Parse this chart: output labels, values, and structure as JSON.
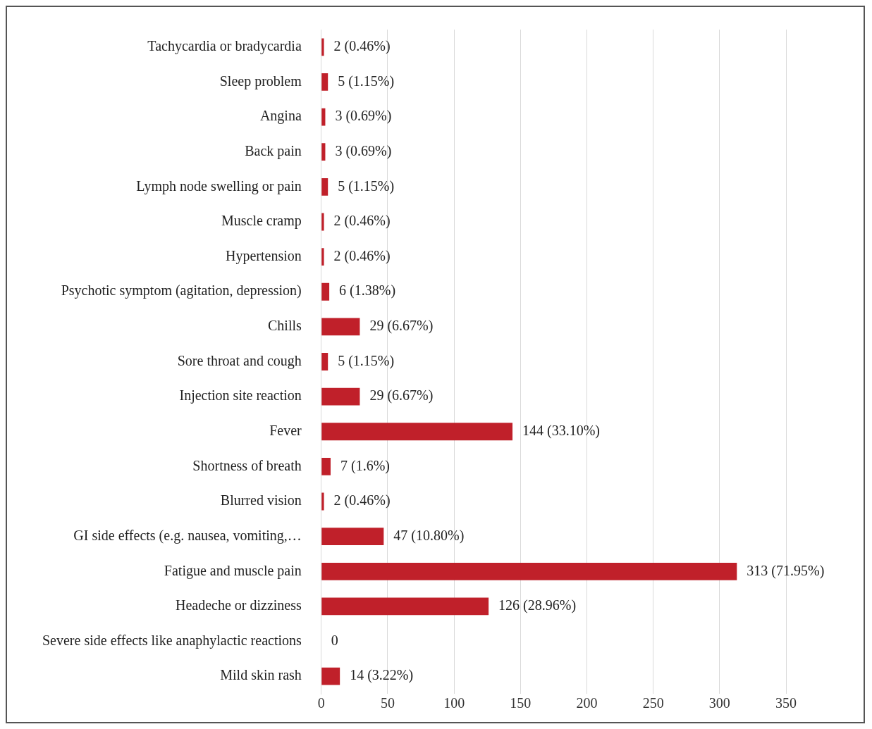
{
  "chart_data": {
    "type": "bar",
    "orientation": "horizontal",
    "categories": [
      "Tachycardia or bradycardia",
      "Sleep problem",
      "Angina",
      "Back pain",
      "Lymph node swelling or pain",
      "Muscle cramp",
      "Hypertension",
      "Psychotic symptom (agitation, depression)",
      "Chills",
      "Sore throat and cough",
      "Injection site reaction",
      "Fever",
      "Shortness of breath",
      "Blurred vision",
      "GI side effects (e.g. nausea, vomiting,…",
      "Fatigue and muscle pain",
      "Headeche or dizziness",
      "Severe side effects like anaphylactic reactions",
      "Mild skin rash"
    ],
    "values": [
      2,
      5,
      3,
      3,
      5,
      2,
      2,
      6,
      29,
      5,
      29,
      144,
      7,
      2,
      47,
      313,
      126,
      0,
      14
    ],
    "value_labels": [
      "2 (0.46%)",
      "5 (1.15%)",
      "3 (0.69%)",
      "3 (0.69%)",
      "5 (1.15%)",
      "2 (0.46%)",
      "2 (0.46%)",
      "6 (1.38%)",
      "29 (6.67%)",
      "5 (1.15%)",
      "29 (6.67%)",
      "144 (33.10%)",
      "7 (1.6%)",
      "2 (0.46%)",
      "47 (10.80%)",
      "313 (71.95%)",
      "126 (28.96%)",
      "0",
      "14 (3.22%)"
    ],
    "color": "#c0202a",
    "xlim": [
      0,
      350
    ],
    "xticks": [
      0,
      50,
      100,
      150,
      200,
      250,
      300,
      350
    ],
    "grid": "x",
    "legend": false
  }
}
